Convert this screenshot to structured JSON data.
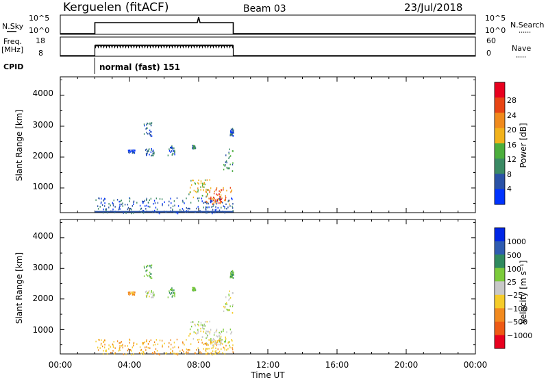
{
  "header": {
    "title": "Kerguelen (fitACF)",
    "beam": "Beam 03",
    "date": "23/Jul/2018"
  },
  "nsky_panel": {
    "left_label": "N.Sky",
    "left_ticks": [
      "10^5",
      "10^0"
    ],
    "right_label": "N.Search",
    "right_ticks": [
      "10^5",
      "10^0"
    ]
  },
  "freq_panel": {
    "left_label_top": "Freq.",
    "left_label_bottom": "[MHz]",
    "left_ticks": [
      "18",
      "8"
    ],
    "right_label": "Nave",
    "right_ticks": [
      "60",
      "0"
    ]
  },
  "cpid": {
    "label": "CPID",
    "value": "normal (fast) 151"
  },
  "x_axis": {
    "label": "Time UT",
    "ticks": [
      "00:00",
      "04:00",
      "08:00",
      "12:00",
      "16:00",
      "20:00",
      "00:00"
    ]
  },
  "power_panel": {
    "ylabel": "Slant Range [km]",
    "yticks": [
      "4000",
      "3000",
      "2000",
      "1000"
    ],
    "colorbar_label": "Power [dB]",
    "colorbar_ticks": [
      "28",
      "24",
      "20",
      "16",
      "12",
      "8",
      "4"
    ],
    "colors": [
      "#0033ff",
      "#2a52a6",
      "#3a8a64",
      "#4cae3c",
      "#f2b21b",
      "#f08a1c",
      "#e84414",
      "#e8001e"
    ]
  },
  "velocity_panel": {
    "ylabel": "Slant Range [km]",
    "yticks": [
      "4000",
      "3000",
      "2000",
      "1000"
    ],
    "colorbar_label": "Velocity [m s⁻¹]",
    "colorbar_ticks": [
      "1000",
      "500",
      "100",
      "25",
      "−25",
      "−100",
      "−500",
      "−1000"
    ],
    "colors": [
      "#0026e6",
      "#2f5cb0",
      "#2f8a5e",
      "#7ccb3b",
      "#c8c8c8",
      "#f5cc2a",
      "#f28a1e",
      "#ee5a14",
      "#e8001e"
    ]
  },
  "chart_data": {
    "type": "heatmap",
    "x_unit": "hours UT",
    "xlim": [
      0,
      24
    ],
    "ylim": [
      200,
      4600
    ],
    "operating_interval": [
      2.0,
      10.0
    ],
    "nsky_trace": {
      "level": "10^5",
      "spike_time": 8.0
    },
    "freq_trace": {
      "level_mhz": 16.5
    },
    "scatter_regions": [
      {
        "t0": 4.8,
        "t1": 5.3,
        "r0": 2700,
        "r1": 3150,
        "power": 8,
        "velocity": 100
      },
      {
        "t0": 3.9,
        "t1": 4.3,
        "r0": 2150,
        "r1": 2250,
        "power": 4,
        "velocity": -100
      },
      {
        "t0": 4.9,
        "t1": 5.4,
        "r0": 2050,
        "r1": 2300,
        "power": 6,
        "velocity": 25
      },
      {
        "t0": 6.2,
        "t1": 6.6,
        "r0": 2050,
        "r1": 2400,
        "power": 6,
        "velocity": 100
      },
      {
        "t0": 7.6,
        "t1": 7.8,
        "r0": 2300,
        "r1": 2400,
        "power": 10,
        "velocity": 100
      },
      {
        "t0": 9.4,
        "t1": 10.0,
        "r0": 1500,
        "r1": 2300,
        "power": 10,
        "velocity": 0
      },
      {
        "t0": 9.8,
        "t1": 10.0,
        "r0": 2700,
        "r1": 2950,
        "power": 6,
        "velocity": 100
      },
      {
        "t0": 7.3,
        "t1": 8.7,
        "r0": 700,
        "r1": 1300,
        "power": 16,
        "velocity": 0
      },
      {
        "t0": 8.4,
        "t1": 9.9,
        "r0": 500,
        "r1": 1050,
        "power": 22,
        "velocity": 0
      },
      {
        "t0": 8.6,
        "t1": 9.6,
        "r0": 500,
        "r1": 850,
        "power": 28,
        "velocity": 0
      },
      {
        "t0": 2.0,
        "t1": 10.0,
        "r0": 200,
        "r1": 700,
        "power": 6,
        "velocity": -100
      }
    ]
  }
}
